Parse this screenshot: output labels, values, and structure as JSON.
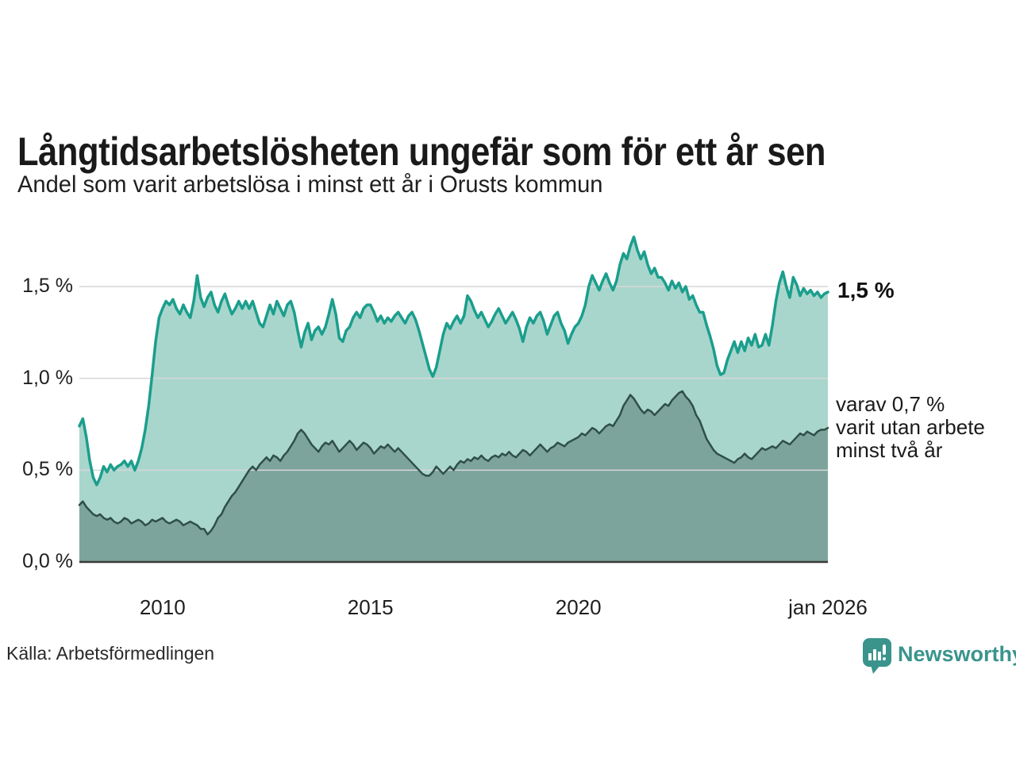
{
  "chart_data": {
    "type": "area",
    "title": "Långtidsarbetslösheten ungefär som för ett år sen",
    "subtitle": "Andel som varit arbetslösa i minst ett år i Orusts kommun",
    "x_unit": "month",
    "x_start": "2008-01",
    "x_end": "2026-01",
    "ylim": [
      0,
      1.85
    ],
    "grid": "horizontal",
    "legend_position": "right-annotations",
    "y_ticks": [
      {
        "label": "0,0 %",
        "value": 0
      },
      {
        "label": "0,5 %",
        "value": 0.5
      },
      {
        "label": "1,0 %",
        "value": 1.0
      },
      {
        "label": "1,5 %",
        "value": 1.5
      }
    ],
    "x_ticks": [
      {
        "label": "2010",
        "month_index": 24
      },
      {
        "label": "2015",
        "month_index": 84
      },
      {
        "label": "2020",
        "month_index": 144
      },
      {
        "label": "jan 2026",
        "month_index": 216
      }
    ],
    "colors": {
      "grid": "#d7d7d7",
      "axis": "#3a3a3a",
      "accent": "#1b9e8d"
    },
    "series": [
      {
        "id": "minst-ett-ar",
        "name": "Andel arbetslösa minst ett år",
        "color": "#1b9e8d",
        "fill": "#a9d6cc",
        "stroke_width": 3.5,
        "end_value_label": "1,5 %",
        "values": [
          0.74,
          0.78,
          0.68,
          0.55,
          0.46,
          0.42,
          0.46,
          0.52,
          0.49,
          0.53,
          0.5,
          0.52,
          0.53,
          0.55,
          0.52,
          0.55,
          0.5,
          0.55,
          0.62,
          0.72,
          0.85,
          1.02,
          1.2,
          1.33,
          1.38,
          1.42,
          1.4,
          1.43,
          1.38,
          1.35,
          1.4,
          1.36,
          1.33,
          1.42,
          1.56,
          1.44,
          1.39,
          1.44,
          1.47,
          1.4,
          1.36,
          1.42,
          1.46,
          1.4,
          1.35,
          1.38,
          1.42,
          1.38,
          1.42,
          1.38,
          1.42,
          1.36,
          1.3,
          1.28,
          1.34,
          1.4,
          1.35,
          1.42,
          1.38,
          1.34,
          1.4,
          1.42,
          1.36,
          1.26,
          1.17,
          1.25,
          1.3,
          1.21,
          1.26,
          1.28,
          1.24,
          1.28,
          1.35,
          1.43,
          1.35,
          1.22,
          1.2,
          1.26,
          1.28,
          1.33,
          1.36,
          1.33,
          1.38,
          1.4,
          1.4,
          1.36,
          1.31,
          1.34,
          1.3,
          1.33,
          1.31,
          1.34,
          1.36,
          1.33,
          1.3,
          1.34,
          1.36,
          1.32,
          1.26,
          1.19,
          1.12,
          1.05,
          1.01,
          1.06,
          1.15,
          1.24,
          1.3,
          1.27,
          1.31,
          1.34,
          1.3,
          1.34,
          1.45,
          1.42,
          1.37,
          1.33,
          1.36,
          1.32,
          1.28,
          1.31,
          1.35,
          1.38,
          1.34,
          1.3,
          1.33,
          1.36,
          1.32,
          1.27,
          1.2,
          1.28,
          1.33,
          1.3,
          1.34,
          1.36,
          1.31,
          1.24,
          1.29,
          1.34,
          1.36,
          1.3,
          1.26,
          1.19,
          1.24,
          1.28,
          1.3,
          1.34,
          1.4,
          1.5,
          1.56,
          1.52,
          1.48,
          1.53,
          1.57,
          1.52,
          1.48,
          1.53,
          1.62,
          1.68,
          1.65,
          1.72,
          1.77,
          1.7,
          1.65,
          1.69,
          1.62,
          1.57,
          1.6,
          1.55,
          1.55,
          1.52,
          1.48,
          1.53,
          1.49,
          1.52,
          1.47,
          1.5,
          1.43,
          1.45,
          1.4,
          1.36,
          1.36,
          1.29,
          1.23,
          1.16,
          1.07,
          1.02,
          1.03,
          1.1,
          1.15,
          1.2,
          1.14,
          1.2,
          1.15,
          1.22,
          1.18,
          1.24,
          1.17,
          1.18,
          1.24,
          1.18,
          1.29,
          1.42,
          1.52,
          1.58,
          1.5,
          1.44,
          1.55,
          1.51,
          1.45,
          1.49,
          1.46,
          1.48,
          1.45,
          1.47,
          1.44,
          1.46,
          1.47
        ]
      },
      {
        "id": "minst-tva-ar",
        "name": "Varav utan arbete minst två år",
        "color": "#2f4f49",
        "fill": "#7da49c",
        "stroke_width": 2.5,
        "end_value_label": "varav 0,7 % varit utan arbete minst två år",
        "values": [
          0.31,
          0.33,
          0.3,
          0.28,
          0.26,
          0.25,
          0.26,
          0.24,
          0.23,
          0.24,
          0.22,
          0.21,
          0.22,
          0.24,
          0.23,
          0.21,
          0.22,
          0.23,
          0.22,
          0.2,
          0.21,
          0.23,
          0.22,
          0.23,
          0.24,
          0.22,
          0.21,
          0.22,
          0.23,
          0.22,
          0.2,
          0.21,
          0.22,
          0.21,
          0.2,
          0.18,
          0.18,
          0.15,
          0.17,
          0.2,
          0.24,
          0.26,
          0.3,
          0.33,
          0.36,
          0.38,
          0.41,
          0.44,
          0.47,
          0.5,
          0.52,
          0.5,
          0.53,
          0.55,
          0.57,
          0.55,
          0.58,
          0.57,
          0.55,
          0.58,
          0.6,
          0.63,
          0.66,
          0.7,
          0.72,
          0.7,
          0.67,
          0.64,
          0.62,
          0.6,
          0.63,
          0.65,
          0.64,
          0.66,
          0.63,
          0.6,
          0.62,
          0.64,
          0.66,
          0.64,
          0.61,
          0.63,
          0.65,
          0.64,
          0.62,
          0.59,
          0.61,
          0.63,
          0.62,
          0.64,
          0.62,
          0.6,
          0.62,
          0.6,
          0.58,
          0.56,
          0.54,
          0.52,
          0.5,
          0.48,
          0.47,
          0.47,
          0.49,
          0.52,
          0.5,
          0.48,
          0.5,
          0.52,
          0.5,
          0.53,
          0.55,
          0.54,
          0.56,
          0.55,
          0.57,
          0.56,
          0.58,
          0.56,
          0.55,
          0.57,
          0.58,
          0.57,
          0.59,
          0.58,
          0.6,
          0.58,
          0.57,
          0.59,
          0.61,
          0.6,
          0.58,
          0.6,
          0.62,
          0.64,
          0.62,
          0.6,
          0.62,
          0.63,
          0.65,
          0.64,
          0.63,
          0.65,
          0.66,
          0.67,
          0.68,
          0.7,
          0.69,
          0.71,
          0.73,
          0.72,
          0.7,
          0.72,
          0.74,
          0.75,
          0.74,
          0.77,
          0.8,
          0.85,
          0.88,
          0.91,
          0.89,
          0.86,
          0.83,
          0.81,
          0.83,
          0.82,
          0.8,
          0.82,
          0.84,
          0.86,
          0.85,
          0.88,
          0.9,
          0.92,
          0.93,
          0.9,
          0.88,
          0.85,
          0.8,
          0.77,
          0.72,
          0.67,
          0.64,
          0.61,
          0.59,
          0.58,
          0.57,
          0.56,
          0.55,
          0.54,
          0.56,
          0.57,
          0.59,
          0.57,
          0.56,
          0.58,
          0.6,
          0.62,
          0.61,
          0.62,
          0.63,
          0.62,
          0.64,
          0.66,
          0.65,
          0.64,
          0.66,
          0.68,
          0.7,
          0.69,
          0.71,
          0.7,
          0.69,
          0.71,
          0.72,
          0.72,
          0.73
        ]
      }
    ]
  },
  "annotations": {
    "series1_label": "1,5 %",
    "series2_lines": [
      "varav 0,7 %",
      "varit utan arbete",
      "minst två år"
    ]
  },
  "footer": {
    "source": "Källa: Arbetsförmedlingen",
    "brand": "Newsworthy"
  }
}
